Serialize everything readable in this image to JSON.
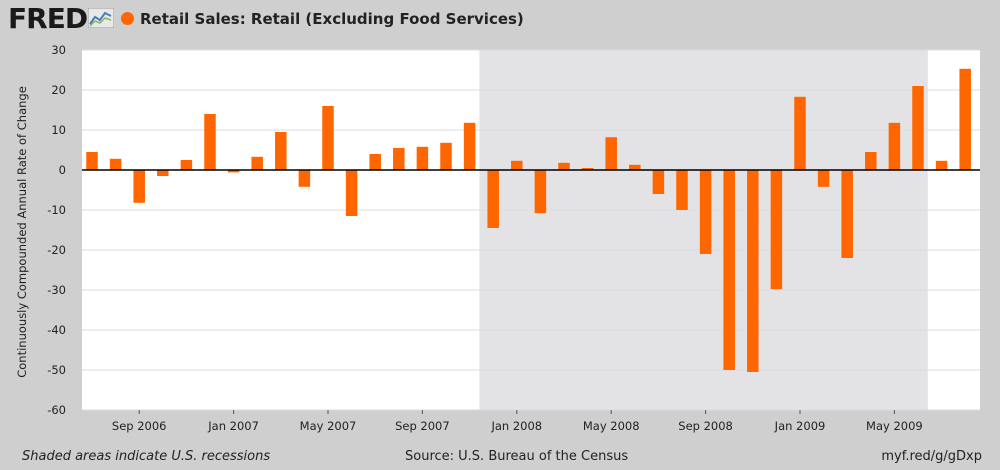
{
  "header": {
    "logo_text": "FRED",
    "title": "Retail Sales: Retail (Excluding Food Services)"
  },
  "colors": {
    "bar": "#ff6600",
    "plot_bg": "#ffffff",
    "recession_bg": "#e3e3e6",
    "page_bg": "#cfcfcf",
    "grid": "#dddddd",
    "zero_line": "#000000"
  },
  "footer": {
    "note": "Shaded areas indicate U.S. recessions",
    "source": "Source: U.S. Bureau of the Census",
    "url": "myf.red/g/gDxp"
  },
  "chart_data": {
    "type": "bar",
    "title": "Retail Sales: Retail (Excluding Food Services)",
    "xlabel": "",
    "ylabel": "Continuously Compounded Annual Rate of Change",
    "ylim": [
      -60,
      30
    ],
    "yticks": [
      30,
      20,
      10,
      0,
      -10,
      -20,
      -30,
      -40,
      -50,
      -60
    ],
    "grid": true,
    "recession_shading": {
      "start": "2007-12",
      "end": "2009-06"
    },
    "x_tick_labels": [
      {
        "label": "Sep 2006",
        "month": "2006-09"
      },
      {
        "label": "Jan 2007",
        "month": "2007-01"
      },
      {
        "label": "May 2007",
        "month": "2007-05"
      },
      {
        "label": "Sep 2007",
        "month": "2007-09"
      },
      {
        "label": "Jan 2008",
        "month": "2008-01"
      },
      {
        "label": "May 2008",
        "month": "2008-05"
      },
      {
        "label": "Sep 2008",
        "month": "2008-09"
      },
      {
        "label": "Jan 2009",
        "month": "2009-01"
      },
      {
        "label": "May 2009",
        "month": "2009-05"
      }
    ],
    "x": [
      "2006-07",
      "2006-08",
      "2006-09",
      "2006-10",
      "2006-11",
      "2006-12",
      "2007-01",
      "2007-02",
      "2007-03",
      "2007-04",
      "2007-05",
      "2007-06",
      "2007-07",
      "2007-08",
      "2007-09",
      "2007-10",
      "2007-11",
      "2007-12",
      "2008-01",
      "2008-02",
      "2008-03",
      "2008-04",
      "2008-05",
      "2008-06",
      "2008-07",
      "2008-08",
      "2008-09",
      "2008-10",
      "2008-11",
      "2008-12",
      "2009-01",
      "2009-02",
      "2009-03",
      "2009-04",
      "2009-05",
      "2009-06",
      "2009-07",
      "2009-08"
    ],
    "values": [
      4.5,
      2.8,
      -8.2,
      -1.5,
      2.5,
      14.0,
      -0.6,
      3.3,
      9.5,
      -4.2,
      16.0,
      -11.5,
      4.0,
      5.5,
      5.8,
      6.8,
      11.8,
      -14.5,
      2.3,
      -10.8,
      1.8,
      0.5,
      8.2,
      1.3,
      -6.0,
      -10.0,
      -21.0,
      -50.0,
      -50.5,
      -29.8,
      18.3,
      -4.2,
      -22.0,
      4.5,
      11.8,
      21.0,
      2.3,
      25.3
    ]
  }
}
